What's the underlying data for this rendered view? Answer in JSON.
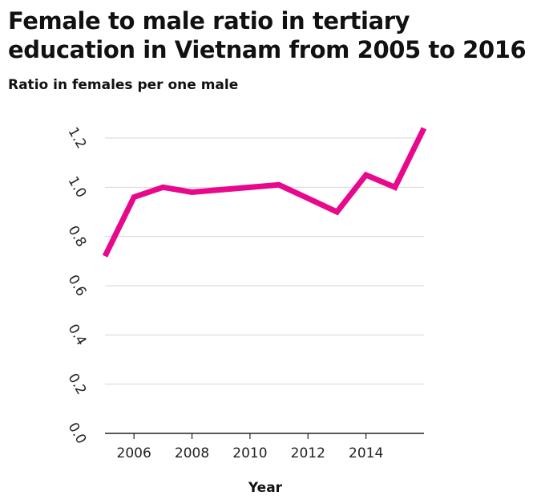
{
  "chart_data": {
    "type": "line",
    "title": "Female to male ratio in tertiary education in Vietnam from 2005 to 2016",
    "ylabel": "Ratio in females per one male",
    "xlabel": "Year",
    "x": [
      2005,
      2006,
      2007,
      2008,
      2009,
      2010,
      2011,
      2012,
      2013,
      2014,
      2015,
      2016
    ],
    "series": [
      {
        "values": [
          0.72,
          0.96,
          1.0,
          0.98,
          0.99,
          1.0,
          1.01,
          0.955,
          0.9,
          1.05,
          1.0,
          1.24
        ],
        "color": "#e8088c"
      }
    ],
    "xlim": [
      2005,
      2016
    ],
    "ylim": [
      0,
      1.2
    ],
    "yticks": [
      "0.0",
      "0.2",
      "0.4",
      "0.6",
      "0.8",
      "1.0",
      "1.2"
    ],
    "xticks": [
      "2006",
      "2008",
      "2010",
      "2012",
      "2014"
    ],
    "grid": true
  }
}
